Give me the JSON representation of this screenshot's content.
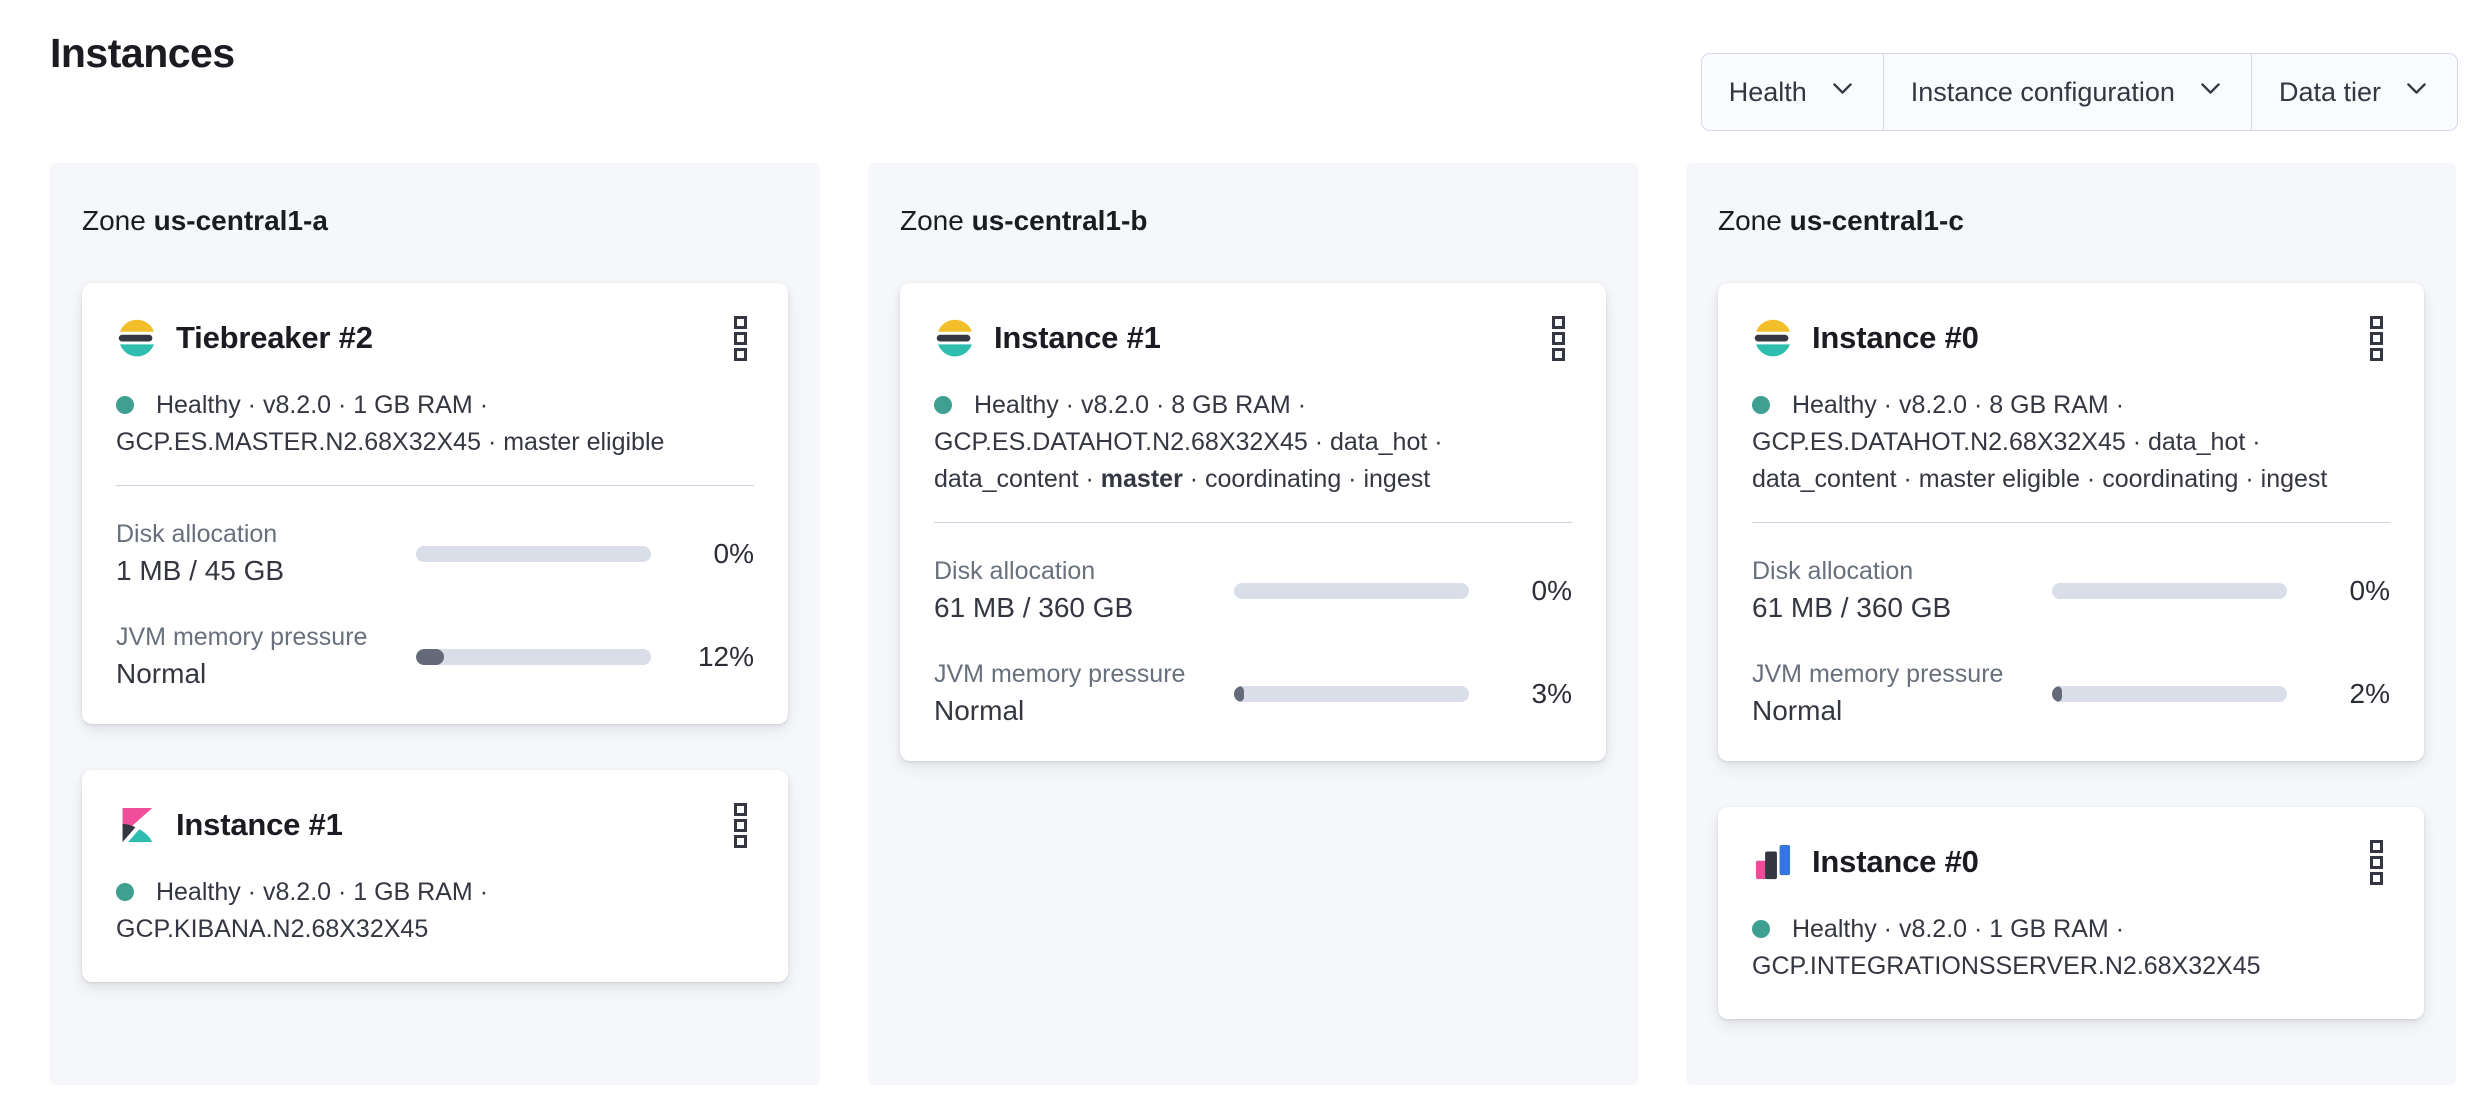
{
  "page": {
    "title": "Instances"
  },
  "filters": [
    {
      "label": "Health"
    },
    {
      "label": "Instance configuration"
    },
    {
      "label": "Data tier"
    }
  ],
  "zones": [
    {
      "label": "Zone",
      "name": "us-central1-a",
      "cards": [
        {
          "icon": "elasticsearch",
          "title": "Tiebreaker #2",
          "status_segments": [
            {
              "text": "Healthy"
            },
            {
              "text": "v8.2.0"
            },
            {
              "text": "1 GB RAM"
            },
            {
              "text": "GCP.ES.MASTER.N2.68X32X45"
            },
            {
              "text": "master eligible"
            }
          ],
          "metrics": [
            {
              "label": "Disk allocation",
              "value": "1 MB / 45 GB",
              "percent": 0
            },
            {
              "label": "JVM memory pressure",
              "value": "Normal",
              "percent": 12
            }
          ]
        },
        {
          "icon": "kibana",
          "title": "Instance #1",
          "status_segments": [
            {
              "text": "Healthy"
            },
            {
              "text": "v8.2.0"
            },
            {
              "text": "1 GB RAM"
            },
            {
              "text": "GCP.KIBANA.N2.68X32X45"
            }
          ],
          "metrics": []
        }
      ]
    },
    {
      "label": "Zone",
      "name": "us-central1-b",
      "cards": [
        {
          "icon": "elasticsearch",
          "title": "Instance #1",
          "status_segments": [
            {
              "text": "Healthy"
            },
            {
              "text": "v8.2.0"
            },
            {
              "text": "8 GB RAM"
            },
            {
              "text": "GCP.ES.DATAHOT.N2.68X32X45"
            },
            {
              "text": "data_hot"
            },
            {
              "text": "data_content"
            },
            {
              "text": "master",
              "bold": true
            },
            {
              "text": "coordinating"
            },
            {
              "text": "ingest"
            }
          ],
          "metrics": [
            {
              "label": "Disk allocation",
              "value": "61 MB / 360 GB",
              "percent": 0
            },
            {
              "label": "JVM memory pressure",
              "value": "Normal",
              "percent": 3
            }
          ]
        }
      ]
    },
    {
      "label": "Zone",
      "name": "us-central1-c",
      "cards": [
        {
          "icon": "elasticsearch",
          "title": "Instance #0",
          "status_segments": [
            {
              "text": "Healthy"
            },
            {
              "text": "v8.2.0"
            },
            {
              "text": "8 GB RAM"
            },
            {
              "text": "GCP.ES.DATAHOT.N2.68X32X45"
            },
            {
              "text": "data_hot"
            },
            {
              "text": "data_content"
            },
            {
              "text": "master eligible"
            },
            {
              "text": "coordinating"
            },
            {
              "text": "ingest"
            }
          ],
          "metrics": [
            {
              "label": "Disk allocation",
              "value": "61 MB / 360 GB",
              "percent": 0
            },
            {
              "label": "JVM memory pressure",
              "value": "Normal",
              "percent": 2
            }
          ]
        },
        {
          "icon": "integrations-server",
          "title": "Instance #0",
          "status_segments": [
            {
              "text": "Healthy"
            },
            {
              "text": "v8.2.0"
            },
            {
              "text": "1 GB RAM"
            },
            {
              "text": "GCP.INTEGRATIONSSERVER.N2.68X32X45"
            }
          ],
          "metrics": []
        }
      ]
    }
  ],
  "colors": {
    "health_dot": "#3fa092",
    "bar_track": "#d9dee8",
    "bar_fill": "#646a77",
    "elasticsearch_yellow": "#f2bf2a",
    "elasticsearch_dark": "#343741",
    "elasticsearch_teal": "#2fbdb0",
    "kibana_pink": "#f04e98",
    "kibana_dark": "#343741",
    "kibana_teal": "#2fbdb0",
    "integrations_pink": "#ee4c98",
    "integrations_dark": "#343741",
    "integrations_blue": "#3575dc",
    "kebab_icon": "#343741",
    "chevron_icon": "#343741"
  }
}
